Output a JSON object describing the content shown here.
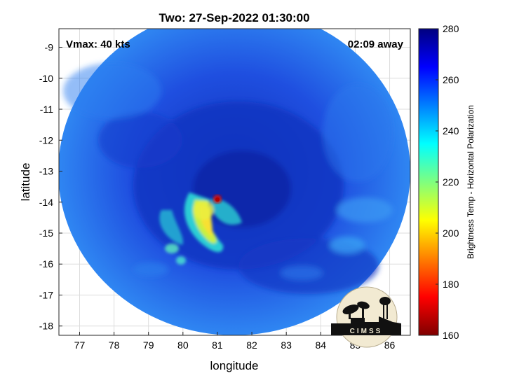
{
  "title": "Two: 27-Sep-2022 01:30:00",
  "vmax_label": "Vmax: 40 kts",
  "time_away": "02:09 away",
  "logo_text": "CIMSS",
  "map": {
    "xlabel": "longitude",
    "ylabel": "latitude",
    "xlim": [
      76.4,
      86.6
    ],
    "ylim": [
      -18.3,
      -8.4
    ],
    "xticks": [
      77,
      78,
      79,
      80,
      81,
      82,
      83,
      84,
      85,
      86
    ],
    "yticks": [
      -9,
      -10,
      -11,
      -12,
      -13,
      -14,
      -15,
      -16,
      -17,
      -18
    ],
    "grid": true,
    "swath_center": [
      81.6,
      -13.2
    ],
    "storm_center": [
      81.0,
      -13.9
    ],
    "swath_base_color": "#1f4fe0",
    "swath_edge_color": "#2f86f2",
    "inner_color": "#102fb8",
    "convection_colors": [
      "#c8f040",
      "#2ee8d8",
      "#f8e030",
      "#d01010"
    ]
  },
  "colorbar": {
    "label": "Brightness Temp - Horizontal Polarization",
    "min": 160,
    "max": 280,
    "ticks": [
      280,
      260,
      240,
      220,
      200,
      180,
      160
    ],
    "colors": [
      "#7f0000",
      "#ff0000",
      "#ff7f00",
      "#ffff00",
      "#7fff7f",
      "#00ffff",
      "#007fff",
      "#0000ff",
      "#00007f"
    ]
  }
}
